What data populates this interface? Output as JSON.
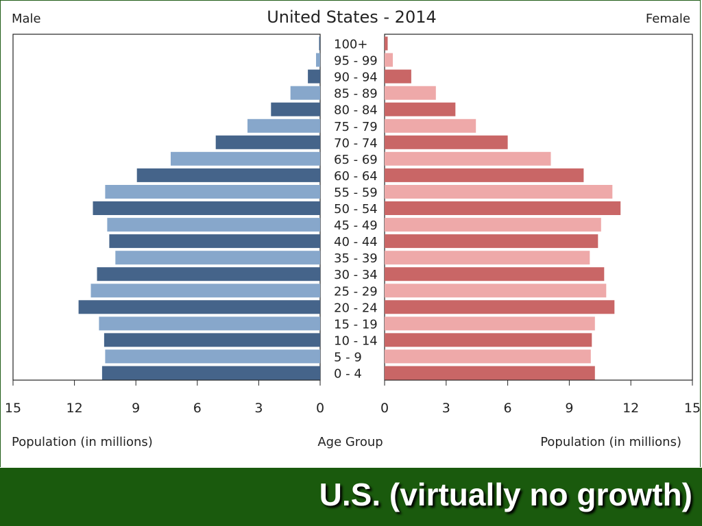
{
  "slide": {
    "caption": "U.S. (virtually no growth)",
    "caption_bar_color": "#1a5a0d"
  },
  "chart_data": {
    "type": "bar",
    "orientation": "horizontal-mirrored",
    "title": "United States - 2014",
    "left_label": "Male",
    "right_label": "Female",
    "xlabel_left": "Population (in millions)",
    "xlabel_center": "Age Group",
    "xlabel_right": "Population (in millions)",
    "xlim": [
      0,
      15
    ],
    "xticks": [
      0,
      3,
      6,
      9,
      12,
      15
    ],
    "categories": [
      "100+",
      "95 - 99",
      "90 - 94",
      "85 - 89",
      "80 - 84",
      "75 - 79",
      "70 - 74",
      "65 - 69",
      "60 - 64",
      "55 - 59",
      "50 - 54",
      "45 - 49",
      "40 - 44",
      "35 - 39",
      "30 - 34",
      "25 - 29",
      "20 - 24",
      "15 - 19",
      "10 - 14",
      "5 - 9",
      "0 - 4"
    ],
    "series": [
      {
        "name": "Male",
        "colors": [
          "#45648a",
          "#87a7cb"
        ],
        "values": [
          0.05,
          0.2,
          0.6,
          1.45,
          2.4,
          3.55,
          5.1,
          7.3,
          8.95,
          10.5,
          11.1,
          10.4,
          10.3,
          10.0,
          10.9,
          11.2,
          11.8,
          10.8,
          10.55,
          10.5,
          10.65
        ]
      },
      {
        "name": "Female",
        "colors": [
          "#c96666",
          "#eea9a9"
        ],
        "values": [
          0.15,
          0.4,
          1.3,
          2.5,
          3.45,
          4.45,
          6.0,
          8.1,
          9.7,
          11.1,
          11.5,
          10.55,
          10.4,
          10.0,
          10.7,
          10.8,
          11.2,
          10.25,
          10.1,
          10.05,
          10.25
        ]
      }
    ]
  }
}
